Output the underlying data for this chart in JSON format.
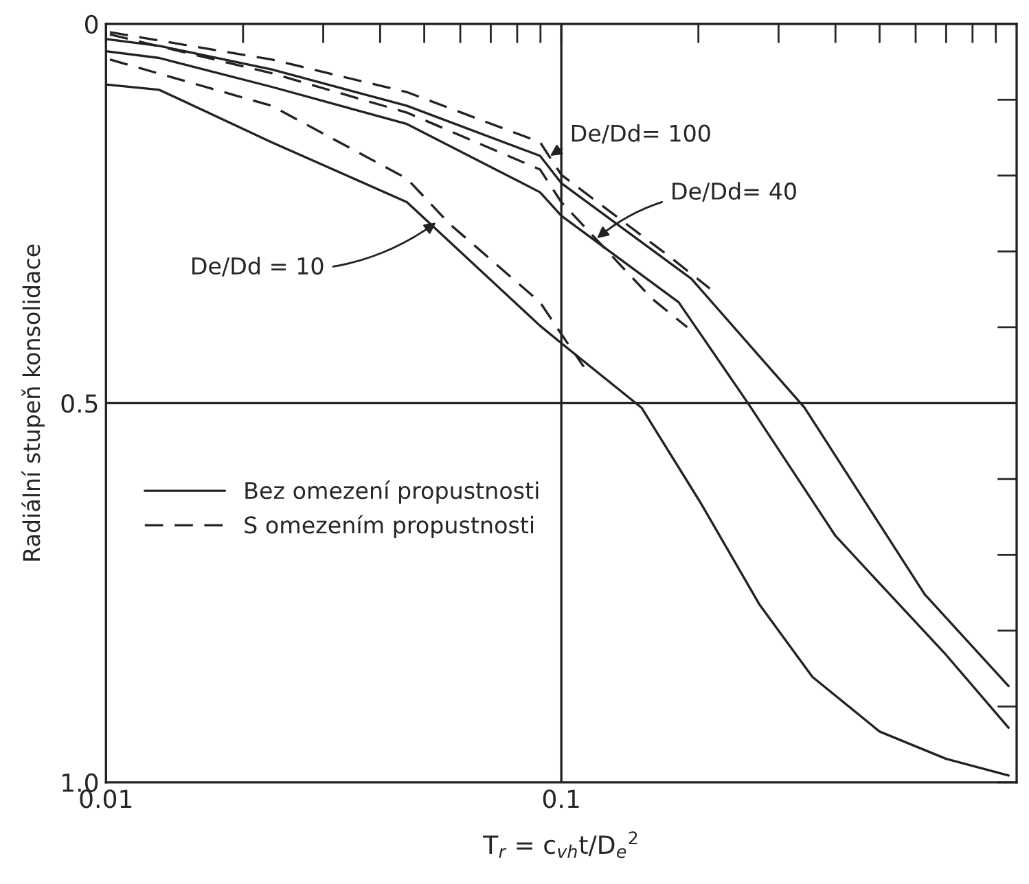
{
  "chart_data": {
    "type": "line",
    "xlabel": "T$_{r}$ = c$_{vh}$t/D$_{e}$$^{2}$",
    "ylabel": "Radiální stupeň konsolidace",
    "log": "x",
    "xlim": [
      0.01,
      1
    ],
    "ylim": [
      1.0,
      0
    ],
    "xticks": [
      0.01,
      {
        "value": 0.02,
        "label": null
      },
      {
        "value": 0.03,
        "label": null
      },
      {
        "value": 0.04,
        "label": null
      },
      {
        "value": 0.05,
        "label": null
      },
      {
        "value": 0.06,
        "label": null
      },
      {
        "value": 0.07,
        "label": null
      },
      {
        "value": 0.08,
        "label": null
      },
      {
        "value": 0.09,
        "label": null
      },
      0.1,
      {
        "value": 0.2,
        "label": null
      },
      {
        "value": 0.3,
        "label": null
      },
      {
        "value": 0.4,
        "label": null
      },
      {
        "value": 0.5,
        "label": null
      },
      {
        "value": 0.6,
        "label": null
      },
      {
        "value": 0.7,
        "label": null
      },
      {
        "value": 0.8,
        "label": null
      },
      {
        "value": 0.9,
        "label": null
      }
    ],
    "yticks": [
      0,
      {
        "value": 0.1,
        "label": null
      },
      {
        "value": 0.2,
        "label": null
      },
      {
        "value": 0.3,
        "label": null
      },
      {
        "value": 0.4,
        "label": null
      },
      0.5,
      {
        "value": 0.6,
        "label": null
      },
      {
        "value": 0.7,
        "label": null
      },
      {
        "value": 0.8,
        "label": null
      },
      {
        "value": 0.9,
        "label": null
      },
      {
        "value": 1.0,
        "label": "1.0"
      }
    ],
    "grid": false,
    "legend": "left",
    "marker": "none",
    "ref_lines": [
      {
        "axis": "x",
        "value": 0.1,
        "color": "#222222"
      },
      {
        "axis": "y",
        "value": 0.5,
        "color": "#222222"
      }
    ],
    "series": [
      {
        "name": "Bez omezení propustnosti",
        "color": "#222222",
        "line_style": "solid",
        "x": [
          0.01,
          0.0131,
          0.0231,
          0.0458,
          0.0898,
          0.1,
          0.15,
          0.203,
          0.272,
          0.356,
          0.5,
          0.7,
          0.96
        ],
        "values": [
          0.08,
          0.087,
          0.156,
          0.235,
          0.398,
          0.421,
          0.506,
          0.633,
          0.765,
          0.861,
          0.933,
          0.969,
          0.991
        ]
      },
      {
        "color": "#222222",
        "line_style": "solid",
        "x": [
          0.01,
          0.0131,
          0.0231,
          0.0458,
          0.0898,
          0.1,
          0.181,
          0.257,
          0.4,
          0.561,
          0.7,
          0.96
        ],
        "values": [
          0.036,
          0.045,
          0.083,
          0.132,
          0.222,
          0.253,
          0.367,
          0.5,
          0.675,
          0.77,
          0.832,
          0.928
        ]
      },
      {
        "color": "#222222",
        "line_style": "solid",
        "x": [
          0.01,
          0.0131,
          0.0231,
          0.0458,
          0.0898,
          0.1,
          0.193,
          0.342,
          0.468,
          0.628,
          0.96
        ],
        "values": [
          0.02,
          0.029,
          0.06,
          0.108,
          0.174,
          0.21,
          0.336,
          0.506,
          0.633,
          0.752,
          0.873
        ]
      },
      {
        "name": "S omezením propustnosti",
        "color": "#222222",
        "line_style": "dashed",
        "x": [
          0.0102,
          0.0231,
          0.0458,
          0.0569,
          0.0898,
          0.1,
          0.112
        ],
        "values": [
          0.047,
          0.108,
          0.204,
          0.264,
          0.367,
          0.409,
          0.452
        ]
      },
      {
        "color": "#222222",
        "line_style": "dashed",
        "x": [
          0.0102,
          0.0231,
          0.0458,
          0.0898,
          0.1,
          0.158,
          0.189
        ],
        "values": [
          0.014,
          0.065,
          0.117,
          0.192,
          0.235,
          0.362,
          0.4
        ]
      },
      {
        "color": "#222222",
        "line_style": "dashed",
        "x": [
          0.0102,
          0.0231,
          0.0458,
          0.0898,
          0.1,
          0.173,
          0.212
        ],
        "values": [
          0.011,
          0.047,
          0.09,
          0.156,
          0.199,
          0.307,
          0.349
        ]
      }
    ],
    "annotations": [
      {
        "text": "De/Dd = 10",
        "x": 0.0539,
        "y": 0.259
      },
      {
        "text": "De/Dd= 100",
        "x": 0.093,
        "y": 0.177
      },
      {
        "text": "De/Dd= 40",
        "x": 0.118,
        "y": 0.286
      }
    ]
  }
}
